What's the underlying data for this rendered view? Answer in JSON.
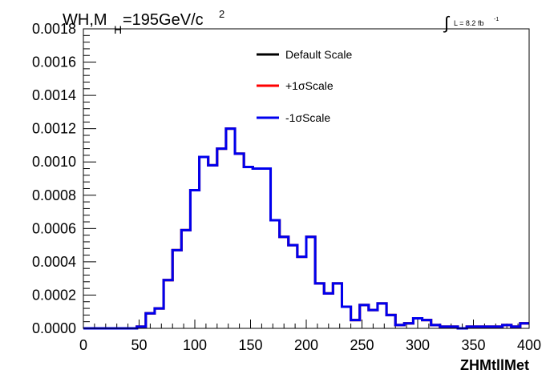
{
  "title": {
    "main": "WH,M",
    "sub": "H",
    "rest": "=195GeV/c",
    "sup": "2"
  },
  "lumi": {
    "symbol": "∫",
    "text": "L = 8.2 fb",
    "sup": "-1"
  },
  "chart_data": {
    "type": "line",
    "style": "step-histogram",
    "xlabel": "ZHMtllMet",
    "ylabel": "",
    "xlim": [
      0,
      400
    ],
    "ylim": [
      0,
      0.0018
    ],
    "x_ticks": [
      "0",
      "50",
      "100",
      "150",
      "200",
      "250",
      "300",
      "350",
      "400"
    ],
    "y_ticks": [
      "0.0000",
      "0.0002",
      "0.0004",
      "0.0006",
      "0.0008",
      "0.0010",
      "0.0012",
      "0.0014",
      "0.0016",
      "0.0018"
    ],
    "bin_width": 8,
    "bin_edges_start": 0,
    "legend_placement": "top-center",
    "series": [
      {
        "name": "Default Scale",
        "color": "#000000",
        "values": [
          0,
          0,
          0,
          0,
          0,
          0,
          1e-05,
          9e-05,
          0.00012,
          0.00029,
          0.00047,
          0.00059,
          0.00083,
          0.00103,
          0.00098,
          0.00108,
          0.0012,
          0.00105,
          0.00097,
          0.00096,
          0.00096,
          0.00065,
          0.00055,
          0.0005,
          0.00043,
          0.00055,
          0.00027,
          0.00021,
          0.00027,
          0.00013,
          5e-05,
          0.00014,
          0.00011,
          0.00015,
          8e-05,
          2e-05,
          3e-05,
          6e-05,
          5e-05,
          2e-05,
          1e-05,
          1e-05,
          0,
          1e-05,
          1e-05,
          1e-05,
          1e-05,
          2e-05,
          1e-05,
          3e-05
        ]
      },
      {
        "name": "+1σScale",
        "color": "#ff0000",
        "values": [
          0,
          0,
          0,
          0,
          0,
          0,
          1e-05,
          9e-05,
          0.00012,
          0.00029,
          0.00047,
          0.00059,
          0.00083,
          0.00103,
          0.00098,
          0.00108,
          0.0012,
          0.00105,
          0.00097,
          0.00096,
          0.00096,
          0.00065,
          0.00055,
          0.0005,
          0.00043,
          0.00055,
          0.00027,
          0.00021,
          0.00027,
          0.00013,
          5e-05,
          0.00014,
          0.00011,
          0.00015,
          8e-05,
          2e-05,
          3e-05,
          6e-05,
          5e-05,
          2e-05,
          1e-05,
          1e-05,
          0,
          1e-05,
          1e-05,
          1e-05,
          1e-05,
          2e-05,
          1e-05,
          3e-05
        ]
      },
      {
        "name": "-1σScale",
        "color": "#0000ee",
        "values": [
          0,
          0,
          0,
          0,
          0,
          0,
          1e-05,
          9e-05,
          0.00012,
          0.00029,
          0.00047,
          0.00059,
          0.00083,
          0.00103,
          0.00098,
          0.00108,
          0.0012,
          0.00105,
          0.00097,
          0.00096,
          0.00096,
          0.00065,
          0.00055,
          0.0005,
          0.00043,
          0.00055,
          0.00027,
          0.00021,
          0.00027,
          0.00013,
          5e-05,
          0.00014,
          0.00011,
          0.00015,
          8e-05,
          2e-05,
          3e-05,
          6e-05,
          5e-05,
          2e-05,
          1e-05,
          1e-05,
          0,
          1e-05,
          1e-05,
          1e-05,
          1e-05,
          2e-05,
          1e-05,
          3e-05
        ]
      }
    ]
  }
}
